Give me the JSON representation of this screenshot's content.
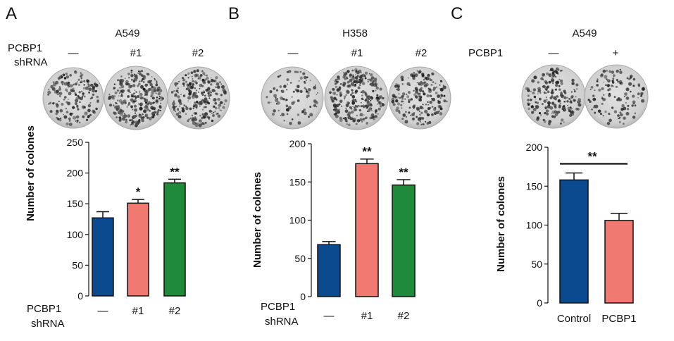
{
  "panels": [
    {
      "label": "A",
      "title": "A549",
      "condition_label": [
        "PCBP1",
        "shRNA"
      ],
      "column_labels": [
        "—",
        "#1",
        "#2"
      ]
    },
    {
      "label": "B",
      "title": "H358",
      "condition_label": [
        "PCBP1",
        "shRNA"
      ],
      "column_labels": [
        "—",
        "#1",
        "#2"
      ]
    },
    {
      "label": "C",
      "title": "A549",
      "condition_label": [
        "PCBP1"
      ],
      "column_labels": [
        "—",
        "+"
      ]
    }
  ],
  "colors": {
    "blue": "#0b4a8f",
    "salmon": "#f07a72",
    "green": "#1f8a3a"
  },
  "chart_data": [
    {
      "type": "bar",
      "categories": [
        "—",
        "#1",
        "#2"
      ],
      "values": [
        127,
        151,
        184
      ],
      "errors": [
        10,
        6,
        6
      ],
      "significance": [
        "",
        "*",
        "**"
      ],
      "bar_colors": [
        "#0b4a8f",
        "#f07a72",
        "#1f8a3a"
      ],
      "ylabel": "Number of colones",
      "ylim": [
        0,
        250
      ],
      "yticks": [
        0,
        50,
        100,
        150,
        200,
        250
      ],
      "xlabel": [
        "PCBP1",
        "shRNA"
      ]
    },
    {
      "type": "bar",
      "categories": [
        "—",
        "#1",
        "#2"
      ],
      "values": [
        68,
        174,
        146
      ],
      "errors": [
        4,
        6,
        7
      ],
      "significance": [
        "",
        "**",
        "**"
      ],
      "bar_colors": [
        "#0b4a8f",
        "#f07a72",
        "#1f8a3a"
      ],
      "ylabel": "Number of colones",
      "ylim": [
        0,
        200
      ],
      "yticks": [
        0,
        50,
        100,
        150,
        200
      ],
      "xlabel": [
        "PCBP1",
        "shRNA"
      ]
    },
    {
      "type": "bar",
      "categories": [
        "Control",
        "PCBP1"
      ],
      "values": [
        158,
        106
      ],
      "errors": [
        9,
        9
      ],
      "significance_bracket": "**",
      "bar_colors": [
        "#0b4a8f",
        "#f07a72"
      ],
      "ylabel": "Number of colones",
      "ylim": [
        0,
        200
      ],
      "yticks": [
        0,
        50,
        100,
        150,
        200
      ],
      "xlabel": []
    }
  ]
}
